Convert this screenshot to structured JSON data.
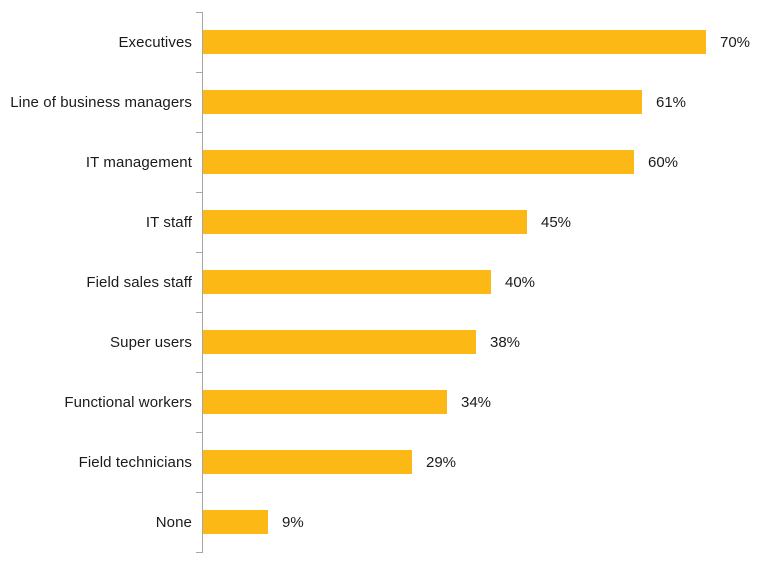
{
  "chart_data": {
    "type": "bar",
    "orientation": "horizontal",
    "title": "",
    "xlabel": "",
    "ylabel": "",
    "categories": [
      "Executives",
      "Line of business managers",
      "IT management",
      "IT staff",
      "Field sales staff",
      "Super users",
      "Functional workers",
      "Field technicians",
      "None"
    ],
    "values": [
      70,
      61,
      60,
      45,
      40,
      38,
      34,
      29,
      9
    ],
    "value_labels": [
      "70%",
      "61%",
      "60%",
      "45%",
      "40%",
      "38%",
      "34%",
      "29%",
      "9%"
    ],
    "xlim": [
      0,
      78
    ],
    "grid": false,
    "legend": null,
    "bar_color": "#FCB814",
    "axis_color": "#A6A6A6",
    "text_color": "#1B1B1B"
  }
}
